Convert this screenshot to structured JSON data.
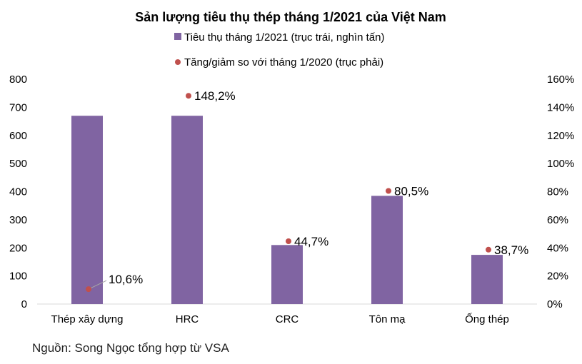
{
  "chart_data": {
    "type": "bar",
    "title": "Sản lượng tiêu thụ thép tháng 1/2021 của Việt Nam",
    "categories": [
      "Thép xây dựng",
      "HRC",
      "CRC",
      "Tôn mạ",
      "Ống thép"
    ],
    "series": [
      {
        "name": "Tiêu thụ tháng 1/2021 (trục trái, nghìn tấn)",
        "type": "bar",
        "axis": "left",
        "color": "#8064a2",
        "values": [
          670,
          670,
          210,
          385,
          175
        ]
      },
      {
        "name": "Tăng/giảm so với tháng 1/2020 (trục phải)",
        "type": "scatter",
        "axis": "right",
        "color": "#c0504d",
        "values": [
          10.6,
          148.2,
          44.7,
          80.5,
          38.7
        ],
        "labels": [
          "10,6%",
          "148,2%",
          "44,7%",
          "80,5%",
          "38,7%"
        ]
      }
    ],
    "y_left": {
      "min": 0,
      "max": 800,
      "step": 100,
      "ticks": [
        "0",
        "100",
        "200",
        "300",
        "400",
        "500",
        "600",
        "700",
        "800"
      ]
    },
    "y_right": {
      "min": 0,
      "max": 160,
      "step": 20,
      "ticks": [
        "0%",
        "20%",
        "40%",
        "60%",
        "80%",
        "100%",
        "120%",
        "140%",
        "160%"
      ]
    },
    "grid": false,
    "legend_position": "top"
  },
  "source": "Nguồn: Song Ngọc tổng hợp từ VSA"
}
